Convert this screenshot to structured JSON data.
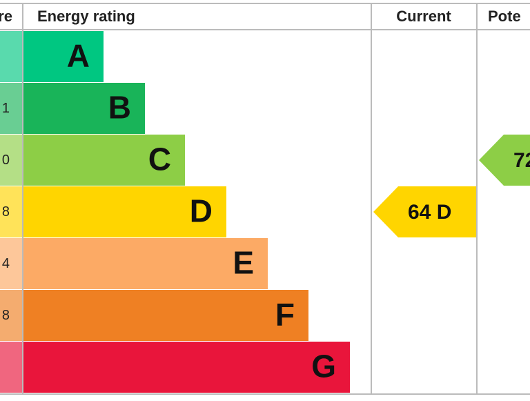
{
  "header": {
    "score": "re",
    "rating": "Energy rating",
    "current": "Current",
    "potential": "Pote"
  },
  "bands": [
    {
      "letter": "A",
      "score": null,
      "color": "#00c781"
    },
    {
      "letter": "B",
      "score": "1",
      "color": "#19b459"
    },
    {
      "letter": "C",
      "score": "0",
      "color": "#8dce46"
    },
    {
      "letter": "D",
      "score": "8",
      "color": "#ffd500"
    },
    {
      "letter": "E",
      "score": "4",
      "color": "#fcaa65"
    },
    {
      "letter": "F",
      "score": "8",
      "color": "#ef8023"
    },
    {
      "letter": "G",
      "score": null,
      "color": "#e9153b"
    }
  ],
  "current": {
    "label": "64 D",
    "band": "D"
  },
  "potential": {
    "label": "72",
    "band": "C"
  }
}
